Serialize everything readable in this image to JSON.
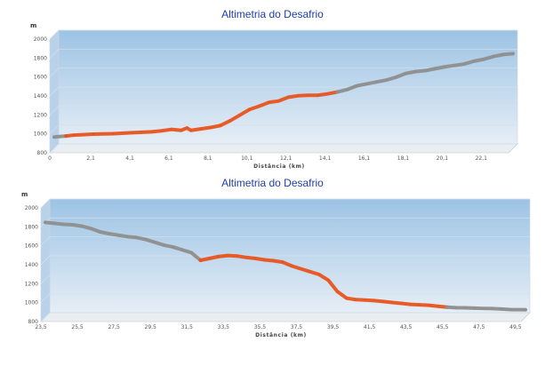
{
  "chart_data": [
    {
      "type": "line",
      "title": "Altimetria do Desafrio",
      "ylabel": "m",
      "xlabel": "Distância (km)",
      "ylim": [
        800,
        2000
      ],
      "yticks": [
        "800",
        "1000",
        "1200",
        "1400",
        "1600",
        "1800",
        "2000"
      ],
      "xlim": [
        0,
        23.5
      ],
      "xticks": [
        "0",
        "2,1",
        "4,1",
        "6,1",
        "8,1",
        "10,1",
        "12,1",
        "14,1",
        "16,1",
        "18,1",
        "20,1",
        "22,1"
      ],
      "xtick_values": [
        0,
        2.1,
        4.1,
        6.1,
        8.1,
        10.1,
        12.1,
        14.1,
        16.1,
        18.1,
        20.1,
        22.1
      ],
      "grid": true,
      "colors": {
        "highlight": "#e8541e",
        "base": "#8e8e8e",
        "background_top": "#9cc3e4",
        "background_bottom": "#e6eef6"
      },
      "series": [
        {
          "color": "#8e8e8e",
          "x": [
            0,
            0.3,
            0.6
          ],
          "y": [
            920,
            925,
            930
          ]
        },
        {
          "color": "#e8541e",
          "x": [
            0.6,
            1,
            2,
            3,
            4,
            4.5,
            5,
            5.5,
            6,
            6.5,
            6.8,
            7,
            7.5,
            8,
            8.5,
            9,
            9.5,
            10,
            10.5,
            11,
            11.5,
            12,
            12.5,
            13,
            13.5,
            14,
            14.5
          ],
          "y": [
            930,
            940,
            950,
            955,
            965,
            970,
            975,
            985,
            1000,
            990,
            1015,
            990,
            1005,
            1020,
            1040,
            1090,
            1150,
            1210,
            1245,
            1285,
            1300,
            1340,
            1355,
            1360,
            1360,
            1375,
            1395
          ]
        },
        {
          "color": "#8e8e8e",
          "x": [
            14.5,
            15,
            15.5,
            16,
            16.5,
            17,
            17.5,
            18,
            18.5,
            19,
            19.5,
            20,
            20.5,
            21,
            21.5,
            22,
            22.5,
            23,
            23.5
          ],
          "y": [
            1395,
            1420,
            1460,
            1480,
            1500,
            1520,
            1550,
            1590,
            1610,
            1620,
            1640,
            1660,
            1675,
            1690,
            1720,
            1740,
            1770,
            1790,
            1800
          ]
        }
      ]
    },
    {
      "type": "line",
      "title": "Altimetria do Desafrio",
      "ylabel": "m",
      "xlabel": "Distância (km)",
      "ylim": [
        800,
        2000
      ],
      "yticks": [
        "800",
        "1000",
        "1200",
        "1400",
        "1600",
        "1800",
        "2000"
      ],
      "xlim": [
        23.5,
        49.8
      ],
      "xticks": [
        "23,5",
        "25,5",
        "27,5",
        "29,5",
        "31,5",
        "33,5",
        "35,5",
        "37,5",
        "39,5",
        "41,5",
        "43,5",
        "45,5",
        "47,5",
        "49,5"
      ],
      "xtick_values": [
        23.5,
        25.5,
        27.5,
        29.5,
        31.5,
        33.5,
        35.5,
        37.5,
        39.5,
        41.5,
        43.5,
        45.5,
        47.5,
        49.5
      ],
      "grid": true,
      "colors": {
        "highlight": "#e8541e",
        "base": "#8e8e8e",
        "background_top": "#9cc3e4",
        "background_bottom": "#e6eef6"
      },
      "series": [
        {
          "color": "#8e8e8e",
          "x": [
            23.5,
            24,
            24.5,
            25,
            25.5,
            26,
            26.5,
            27,
            27.5,
            28,
            28.5,
            29,
            29.5,
            30,
            30.5,
            31,
            31.5,
            32
          ],
          "y": [
            1800,
            1790,
            1780,
            1775,
            1760,
            1735,
            1700,
            1680,
            1665,
            1650,
            1640,
            1620,
            1590,
            1560,
            1540,
            1510,
            1480,
            1400
          ]
        },
        {
          "color": "#e8541e",
          "x": [
            32,
            32.5,
            33,
            33.5,
            34,
            34.5,
            35,
            35.5,
            36,
            36.5,
            37,
            37.5,
            38,
            38.5,
            39,
            39.5,
            40,
            40.5,
            41,
            41.5,
            42,
            42.5,
            43,
            43.5,
            44,
            44.5,
            45,
            45.5
          ],
          "y": [
            1400,
            1420,
            1440,
            1450,
            1445,
            1430,
            1420,
            1405,
            1395,
            1380,
            1340,
            1310,
            1280,
            1250,
            1190,
            1070,
            1000,
            985,
            980,
            975,
            965,
            955,
            945,
            935,
            930,
            925,
            915,
            905
          ]
        },
        {
          "color": "#8e8e8e",
          "x": [
            45.5,
            46,
            46.5,
            47,
            47.5,
            48,
            48.5,
            49,
            49.8
          ],
          "y": [
            905,
            900,
            898,
            895,
            892,
            890,
            885,
            880,
            878
          ]
        }
      ]
    }
  ]
}
